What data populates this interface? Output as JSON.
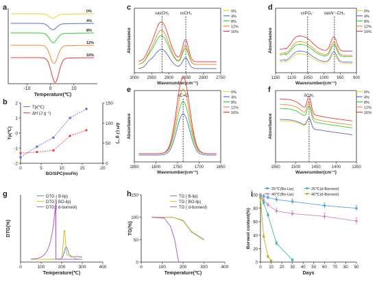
{
  "colors": {
    "pct0": "#e8d230",
    "pct4": "#5a6fd0",
    "pct8": "#33cc33",
    "pct12": "#f08a2c",
    "pct16": "#e8383c",
    "b_tp": "#6a6adf",
    "b_dh": "#ee3c3c",
    "tg_blip": "#5a8ad6",
    "tg_bolip": "#e0b62a",
    "tg_dborneol": "#b15fd0",
    "i_25blip": "#5ba2d8",
    "i_40blip": "#d284c0",
    "i_25dborneol": "#4cb8a0",
    "i_40dborneol": "#b6b020"
  },
  "chart_data": [
    {
      "id": "a",
      "panel_label": "a",
      "type": "line",
      "title": "",
      "xlabel": "Temperature(℃)",
      "ylabel": "",
      "xlim": [
        -18,
        20
      ],
      "xticks": [
        -10,
        0,
        10
      ],
      "series": [
        {
          "name": "0%",
          "color_key": "pct0",
          "peak_x": 1.0,
          "depth": 0.1
        },
        {
          "name": "4%",
          "color_key": "pct4",
          "peak_x": 1.0,
          "depth": 0.2
        },
        {
          "name": "8%",
          "color_key": "pct8",
          "peak_x": 1.2,
          "depth": 0.3
        },
        {
          "name": "12%",
          "color_key": "pct12",
          "peak_x": 1.5,
          "depth": 0.7
        },
        {
          "name": "16%",
          "color_key": "pct16",
          "peak_x": 2.0,
          "depth": 1.0
        }
      ]
    },
    {
      "id": "b",
      "panel_label": "b",
      "type": "line",
      "title": "",
      "xlabel": "BO/SPC(mol%)",
      "ylabel": "Tp(℃)",
      "y2label": "ΔH (J g⁻¹)",
      "xlim": [
        0,
        20
      ],
      "xticks": [
        0,
        5,
        10,
        15,
        20
      ],
      "ylim": [
        -2,
        2
      ],
      "yticks": [
        -2,
        -1,
        0,
        1,
        2
      ],
      "y2lim": [
        0,
        150
      ],
      "y2ticks": [
        0,
        50,
        100,
        150
      ],
      "series": [
        {
          "name": "Tp(℃)",
          "color_key": "b_tp",
          "axis": "left",
          "x": [
            0,
            4,
            8,
            12,
            16
          ],
          "y": [
            -1.6,
            -0.9,
            -0.3,
            1.0,
            1.6
          ]
        },
        {
          "name": "ΔH (J g⁻¹)",
          "color_key": "b_dh",
          "axis": "right",
          "x": [
            0,
            4,
            8,
            12,
            16
          ],
          "y": [
            25,
            28,
            32,
            68,
            82
          ]
        }
      ]
    },
    {
      "id": "c",
      "panel_label": "c",
      "type": "line",
      "title": "",
      "xlabel": "Wavenumber(cm⁻¹)",
      "ylabel": "Absorbance",
      "xlim": [
        3000,
        2750
      ],
      "xticks": [
        3000,
        2950,
        2900,
        2850,
        2800,
        2750
      ],
      "annotations": [
        {
          "text": "νasCH₂",
          "x": 2920
        },
        {
          "text": "νsCH₂",
          "x": 2851
        }
      ],
      "series_names": [
        "0%",
        "4%",
        "8%",
        "12%",
        "16%"
      ]
    },
    {
      "id": "d",
      "panel_label": "d",
      "type": "line",
      "title": "",
      "xlabel": "Wavenumber(cm⁻¹)",
      "ylabel": "Absorbance",
      "xlim": [
        1150,
        900
      ],
      "xticks": [
        1150,
        1100,
        1050,
        1000,
        950,
        900
      ],
      "annotations": [
        {
          "text": "νsPO₂⁻",
          "x": 1051
        },
        {
          "text": "νasN⁺-CH₃",
          "x": 968
        }
      ],
      "series_names": [
        "0%",
        "4%",
        "8%",
        "12%",
        "16%"
      ]
    },
    {
      "id": "e",
      "panel_label": "e",
      "type": "line",
      "title": "",
      "xlabel": "Wavenumber(cm⁻¹)",
      "ylabel": "Absorbance",
      "xlim": [
        1850,
        1650
      ],
      "xticks": [
        1850,
        1800,
        1750,
        1700,
        1650
      ],
      "annotations": [
        {
          "text": "νC=O",
          "x": 1737
        }
      ],
      "series_names": [
        "0%",
        "4%",
        "8%",
        "12%",
        "16%"
      ]
    },
    {
      "id": "f",
      "panel_label": "f",
      "type": "line",
      "title": "",
      "xlabel": "Wavenumber(cm⁻¹)",
      "ylabel": "Absorbance",
      "xlim": [
        1550,
        1350
      ],
      "xticks": [
        1550,
        1500,
        1450,
        1400,
        1350
      ],
      "annotations": [
        {
          "text": "δCH₂",
          "x": 1467
        }
      ],
      "series_names": [
        "0%",
        "4%",
        "8%",
        "12%",
        "16%"
      ]
    },
    {
      "id": "g",
      "panel_label": "g",
      "type": "line",
      "title": "",
      "xlabel": "Temperature(℃)",
      "ylabel": "DTG(%)",
      "xlim": [
        0,
        400
      ],
      "xticks": [
        0,
        100,
        200,
        300,
        400
      ],
      "series": [
        {
          "name": "DTG ( B-lip)",
          "color_key": "tg_blip"
        },
        {
          "name": "DTG ( BO-lip)",
          "color_key": "tg_bolip"
        },
        {
          "name": "DTG ( d-borneol)",
          "color_key": "tg_dborneol"
        }
      ]
    },
    {
      "id": "h",
      "panel_label": "h",
      "type": "line",
      "title": "",
      "xlabel": "Temperature(℃)",
      "ylabel": "TG(%)",
      "xlim": [
        0,
        400
      ],
      "xticks": [
        0,
        100,
        200,
        300,
        400
      ],
      "ylim": [
        0,
        150
      ],
      "yticks": [
        0,
        50,
        100,
        150
      ],
      "series": [
        {
          "name": "TG ( B-lip)",
          "color_key": "tg_blip",
          "x": [
            50,
            150,
            200,
            240,
            300
          ],
          "y": [
            100,
            100,
            93,
            68,
            50
          ]
        },
        {
          "name": "TG ( BO-lip)",
          "color_key": "tg_bolip",
          "x": [
            50,
            150,
            200,
            240,
            300
          ],
          "y": [
            100,
            100,
            92,
            67,
            49
          ]
        },
        {
          "name": "TG ( d-borneol)",
          "color_key": "tg_dborneol",
          "x": [
            50,
            110,
            140,
            160,
            175,
            180
          ],
          "y": [
            100,
            98,
            80,
            50,
            10,
            0
          ]
        }
      ]
    },
    {
      "id": "i",
      "panel_label": "i",
      "type": "line",
      "title": "",
      "xlabel": "Days",
      "ylabel": "Borneol content(%)",
      "xlim": [
        0,
        90
      ],
      "xticks": [
        0,
        10,
        20,
        30,
        40,
        50,
        60,
        70,
        80,
        90
      ],
      "ylim": [
        0,
        100
      ],
      "yticks": [
        0,
        20,
        40,
        60,
        80,
        100
      ],
      "series": [
        {
          "name": "25℃(Bo-Lip)",
          "color_key": "i_25blip",
          "x": [
            0,
            3,
            7,
            15,
            30,
            60,
            90
          ],
          "y": [
            100,
            98,
            96,
            93,
            90,
            84,
            80
          ],
          "err": [
            2,
            3,
            3,
            4,
            4,
            4,
            4
          ]
        },
        {
          "name": "40℃(Bo-Lip)",
          "color_key": "i_40blip",
          "x": [
            0,
            3,
            7,
            15,
            30,
            60,
            90
          ],
          "y": [
            100,
            92,
            85,
            76,
            72,
            68,
            61
          ],
          "err": [
            2,
            3,
            3,
            4,
            4,
            5,
            5
          ]
        },
        {
          "name": "25℃(d-Borneol)",
          "color_key": "i_25dborneol",
          "x": [
            0,
            3,
            7,
            15,
            30
          ],
          "y": [
            97,
            88,
            70,
            28,
            3
          ],
          "err": [
            2,
            3,
            3,
            3,
            2
          ]
        },
        {
          "name": "40℃(d-Borneol)",
          "color_key": "i_40dborneol",
          "x": [
            0,
            3,
            7,
            10
          ],
          "y": [
            95,
            38,
            8,
            2
          ],
          "err": [
            3,
            3,
            2,
            1
          ]
        }
      ]
    }
  ]
}
